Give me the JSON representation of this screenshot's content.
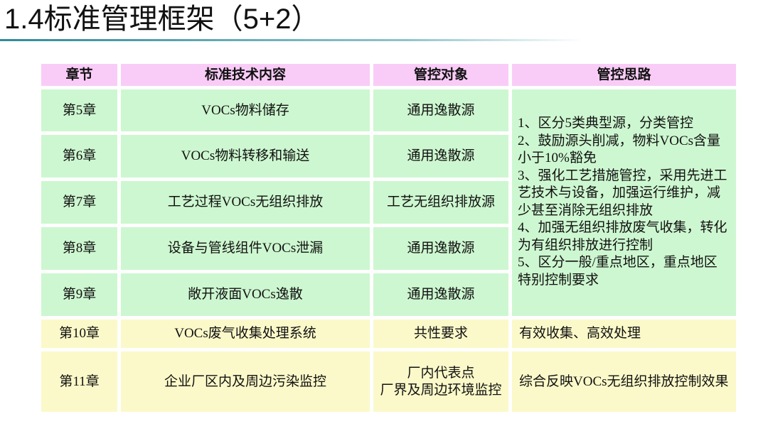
{
  "title": "1.4标准管理框架（5+2）",
  "table": {
    "headers": [
      "章节",
      "标准技术内容",
      "管控对象",
      "管控思路"
    ],
    "rows": [
      {
        "chapter": "第5章",
        "content": "VOCs物料储存",
        "target": "通用逸散源"
      },
      {
        "chapter": "第6章",
        "content": "VOCs物料转移和输送",
        "target": "通用逸散源"
      },
      {
        "chapter": "第7章",
        "content": "工艺过程VOCs无组织排放",
        "target": "工艺无组织排放源"
      },
      {
        "chapter": "第8章",
        "content": "设备与管线组件VOCs泄漏",
        "target": "通用逸散源"
      },
      {
        "chapter": "第9章",
        "content": "敞开液面VOCs逸散",
        "target": "通用逸散源"
      },
      {
        "chapter": "第10章",
        "content": "VOCs废气收集处理系统",
        "target": "共性要求",
        "idea": "有效收集、高效处理"
      },
      {
        "chapter": "第11章",
        "content": "企业厂区内及周边污染监控",
        "target": "厂内代表点\n厂界及周边环境监控",
        "idea": "综合反映VOCs无组织排放控制效果"
      }
    ],
    "merged_idea": [
      "1、区分5类典型源，分类管控",
      "2、鼓励源头削减，物料VOCs含量小于10%豁免",
      "3、强化工艺措施管控，采用先进工艺技术与设备，加强运行维护，减少甚至消除无组织排放",
      "4、加强无组织排放废气收集，转化为有组织排放进行控制",
      "5、区分一般/重点地区，重点地区特别控制要求"
    ]
  },
  "colors": {
    "header": "#f9ccf7",
    "green_rows": "#cdf7d0",
    "yellow_rows": "#fbf9c9",
    "rule": "#2e8a9a"
  }
}
